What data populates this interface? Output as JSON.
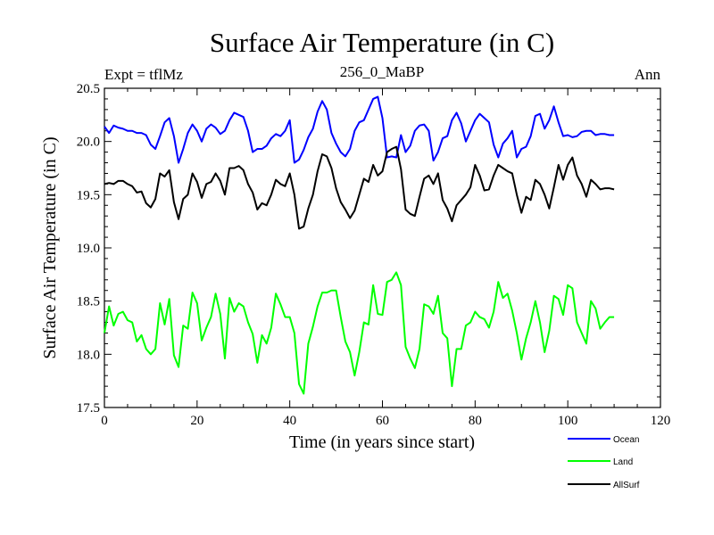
{
  "chart_data": {
    "type": "line",
    "title": "Surface Air Temperature (in C)",
    "subtitle": "256_0_MaBP",
    "left_label": "Expt = tflMz",
    "right_label": "Ann",
    "xlabel": "Time (in years since start)",
    "ylabel": "Surface Air Temperature (in C)",
    "xlim": [
      0,
      120
    ],
    "ylim": [
      17.5,
      20.5
    ],
    "xticks": [
      0,
      20,
      40,
      60,
      80,
      100,
      120
    ],
    "xtick_labels": [
      "0",
      "20",
      "40",
      "60",
      "80",
      "100",
      "120"
    ],
    "yticks": [
      17.5,
      18.0,
      18.5,
      19.0,
      19.5,
      20.0,
      20.5
    ],
    "ytick_labels": [
      "17.5",
      "18.0",
      "18.5",
      "19.0",
      "19.5",
      "20.0",
      "20.5"
    ],
    "grid": false,
    "legend_position": "bottom-right",
    "x": [
      0,
      1,
      2,
      3,
      4,
      5,
      6,
      7,
      8,
      9,
      10,
      11,
      12,
      13,
      14,
      15,
      16,
      17,
      18,
      19,
      20,
      21,
      22,
      23,
      24,
      25,
      26,
      27,
      28,
      29,
      30,
      31,
      32,
      33,
      34,
      35,
      36,
      37,
      38,
      39,
      40,
      41,
      42,
      43,
      44,
      45,
      46,
      47,
      48,
      49,
      50,
      51,
      52,
      53,
      54,
      55,
      56,
      57,
      58,
      59,
      60,
      61,
      62,
      63,
      64,
      65,
      66,
      67,
      68,
      69,
      70,
      71,
      72,
      73,
      74,
      75,
      76,
      77,
      78,
      79,
      80,
      81,
      82,
      83,
      84,
      85,
      86,
      87,
      88,
      89,
      90,
      91,
      92,
      93,
      94,
      95,
      96,
      97,
      98,
      99,
      100,
      101,
      102,
      103,
      104,
      105,
      106,
      107,
      108,
      109,
      110
    ],
    "series": [
      {
        "name": "Ocean",
        "color": "#0000ff",
        "values": [
          20.14,
          20.08,
          20.15,
          20.13,
          20.12,
          20.1,
          20.1,
          20.08,
          20.08,
          20.06,
          19.97,
          19.93,
          20.05,
          20.18,
          20.22,
          20.05,
          19.8,
          19.93,
          20.08,
          20.16,
          20.1,
          20.0,
          20.12,
          20.16,
          20.13,
          20.07,
          20.1,
          20.2,
          20.27,
          20.25,
          20.23,
          20.1,
          19.9,
          19.93,
          19.93,
          19.96,
          20.03,
          20.07,
          20.05,
          20.1,
          20.2,
          19.8,
          19.83,
          19.92,
          20.04,
          20.12,
          20.28,
          20.38,
          20.3,
          20.08,
          19.98,
          19.9,
          19.86,
          19.93,
          20.1,
          20.18,
          20.2,
          20.3,
          20.4,
          20.42,
          20.22,
          19.85,
          19.86,
          19.85,
          20.06,
          19.9,
          19.96,
          20.1,
          20.15,
          20.16,
          20.1,
          19.82,
          19.9,
          20.03,
          20.05,
          20.2,
          20.27,
          20.17,
          20.0,
          20.1,
          20.2,
          20.26,
          20.22,
          20.18,
          19.97,
          19.85,
          19.98,
          20.03,
          20.1,
          19.85,
          19.93,
          19.95,
          20.05,
          20.24,
          20.26,
          20.12,
          20.2,
          20.33,
          20.18,
          20.05,
          20.06,
          20.04,
          20.05,
          20.09,
          20.1,
          20.1,
          20.06,
          20.07,
          20.07,
          20.06,
          20.06
        ]
      },
      {
        "name": "Land",
        "color": "#00ff00",
        "values": [
          18.2,
          18.45,
          18.27,
          18.38,
          18.4,
          18.32,
          18.3,
          18.12,
          18.18,
          18.05,
          18.0,
          18.05,
          18.48,
          18.28,
          18.52,
          17.99,
          17.88,
          18.27,
          18.24,
          18.58,
          18.48,
          18.13,
          18.25,
          18.35,
          18.57,
          18.38,
          17.96,
          18.53,
          18.4,
          18.48,
          18.45,
          18.3,
          18.19,
          17.92,
          18.18,
          18.1,
          18.25,
          18.57,
          18.47,
          18.35,
          18.35,
          18.2,
          17.72,
          17.63,
          18.1,
          18.26,
          18.45,
          18.58,
          18.58,
          18.6,
          18.6,
          18.35,
          18.12,
          18.02,
          17.8,
          18.02,
          18.3,
          18.28,
          18.65,
          18.38,
          18.37,
          18.68,
          18.7,
          18.77,
          18.65,
          18.07,
          17.96,
          17.87,
          18.05,
          18.47,
          18.45,
          18.38,
          18.55,
          18.2,
          18.15,
          17.7,
          18.05,
          18.05,
          18.27,
          18.3,
          18.4,
          18.35,
          18.33,
          18.25,
          18.4,
          18.68,
          18.53,
          18.57,
          18.41,
          18.2,
          17.95,
          18.15,
          18.3,
          18.5,
          18.3,
          18.02,
          18.22,
          18.55,
          18.52,
          18.37,
          18.65,
          18.62,
          18.3,
          18.2,
          18.1,
          18.5,
          18.43,
          18.24,
          18.3,
          18.35,
          18.35
        ]
      },
      {
        "name": "AllSurf",
        "color": "#000000",
        "values": [
          19.6,
          19.61,
          19.6,
          19.63,
          19.63,
          19.6,
          19.58,
          19.52,
          19.53,
          19.42,
          19.38,
          19.46,
          19.7,
          19.67,
          19.73,
          19.43,
          19.27,
          19.46,
          19.5,
          19.7,
          19.62,
          19.47,
          19.6,
          19.62,
          19.7,
          19.63,
          19.5,
          19.75,
          19.75,
          19.77,
          19.73,
          19.6,
          19.52,
          19.36,
          19.42,
          19.4,
          19.5,
          19.64,
          19.6,
          19.58,
          19.7,
          19.5,
          19.18,
          19.2,
          19.37,
          19.5,
          19.72,
          19.88,
          19.86,
          19.75,
          19.56,
          19.43,
          19.36,
          19.28,
          19.35,
          19.5,
          19.65,
          19.62,
          19.78,
          19.68,
          19.72,
          19.9,
          19.93,
          19.95,
          19.74,
          19.36,
          19.32,
          19.3,
          19.48,
          19.65,
          19.68,
          19.6,
          19.7,
          19.45,
          19.37,
          19.25,
          19.4,
          19.45,
          19.5,
          19.57,
          19.78,
          19.68,
          19.54,
          19.55,
          19.68,
          19.78,
          19.75,
          19.72,
          19.7,
          19.5,
          19.33,
          19.48,
          19.45,
          19.64,
          19.6,
          19.5,
          19.37,
          19.57,
          19.78,
          19.64,
          19.78,
          19.85,
          19.68,
          19.6,
          19.48,
          19.64,
          19.6,
          19.55,
          19.56,
          19.56,
          19.55
        ]
      }
    ]
  }
}
